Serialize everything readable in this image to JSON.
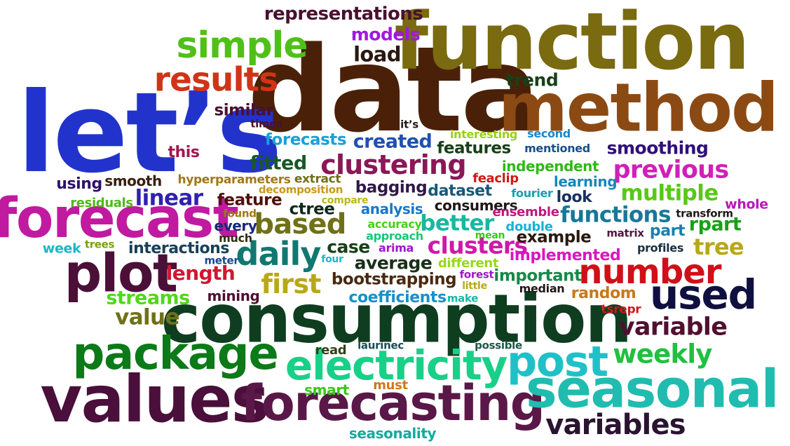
{
  "words": [
    {
      "text": "data",
      "color": "#4a2108"
    },
    {
      "text": "let’s",
      "color": "#2233cc"
    },
    {
      "text": "function",
      "color": "#7a6a10"
    },
    {
      "text": "method",
      "color": "#8b4a14"
    },
    {
      "text": "consumption",
      "color": "#0f3d20"
    },
    {
      "text": "values",
      "color": "#4a0f3a"
    },
    {
      "text": "forecast",
      "color": "#c01aa0"
    },
    {
      "text": "forecasting",
      "color": "#5a1848"
    },
    {
      "text": "seasonal",
      "color": "#20bcb0"
    },
    {
      "text": "package",
      "color": "#0c7a18"
    },
    {
      "text": "electricity",
      "color": "#18d088"
    },
    {
      "text": "plot",
      "color": "#4a1038"
    },
    {
      "text": "post",
      "color": "#20c0c8"
    },
    {
      "text": "simple",
      "color": "#50c018"
    },
    {
      "text": "results",
      "color": "#d03418"
    },
    {
      "text": "number",
      "color": "#d01018"
    },
    {
      "text": "used",
      "color": "#101040"
    },
    {
      "text": "variables",
      "color": "#2a1430"
    },
    {
      "text": "daily",
      "color": "#107870"
    },
    {
      "text": "clustering",
      "color": "#8a1858"
    },
    {
      "text": "previous",
      "color": "#d020b8"
    },
    {
      "text": "based",
      "color": "#707018"
    },
    {
      "text": "representations",
      "color": "#4a1030"
    },
    {
      "text": "load",
      "color": "#2a1810"
    },
    {
      "text": "models",
      "color": "#a018e0"
    },
    {
      "text": "first",
      "color": "#b8a818"
    },
    {
      "text": "variable",
      "color": "#501030"
    },
    {
      "text": "weekly",
      "color": "#20c040"
    },
    {
      "text": "clusters",
      "color": "#d018a8"
    },
    {
      "text": "linear",
      "color": "#3020b0"
    },
    {
      "text": "multiple",
      "color": "#58c818"
    },
    {
      "text": "functions",
      "color": "#187898"
    },
    {
      "text": "tree",
      "color": "#b8a818"
    },
    {
      "text": "fitted",
      "color": "#185828"
    },
    {
      "text": "smoothing",
      "color": "#301078"
    },
    {
      "text": "trend",
      "color": "#184018"
    },
    {
      "text": "similar",
      "color": "#4a1030"
    },
    {
      "text": "forecasts",
      "color": "#18a0d8"
    },
    {
      "text": "created",
      "color": "#2050b0"
    },
    {
      "text": "features",
      "color": "#184018"
    },
    {
      "text": "value",
      "color": "#707018"
    },
    {
      "text": "length",
      "color": "#d01830"
    },
    {
      "text": "streams",
      "color": "#50d818"
    },
    {
      "text": "bootstrapping",
      "color": "#4a2810"
    },
    {
      "text": "coefficients",
      "color": "#1890c8"
    },
    {
      "text": "average",
      "color": "#183018"
    },
    {
      "text": "case",
      "color": "#184018"
    },
    {
      "text": "better",
      "color": "#18b8a0"
    },
    {
      "text": "bagging",
      "color": "#301848"
    },
    {
      "text": "feature",
      "color": "#501008"
    },
    {
      "text": "interactions",
      "color": "#184058"
    },
    {
      "text": "independent",
      "color": "#30b818"
    },
    {
      "text": "learning",
      "color": "#1888b8"
    },
    {
      "text": "example",
      "color": "#2a1810"
    },
    {
      "text": "implemented",
      "color": "#d818c0"
    },
    {
      "text": "important",
      "color": "#188848"
    },
    {
      "text": "random",
      "color": "#c87818"
    },
    {
      "text": "rpart",
      "color": "#18a018"
    },
    {
      "text": "part",
      "color": "#1880b0"
    },
    {
      "text": "look",
      "color": "#183060"
    },
    {
      "text": "dataset",
      "color": "#185878"
    },
    {
      "text": "consumers",
      "color": "#201818"
    },
    {
      "text": "analysis",
      "color": "#1878c8"
    },
    {
      "text": "ctree",
      "color": "#102818"
    },
    {
      "text": "every",
      "color": "#182878"
    },
    {
      "text": "mining",
      "color": "#501030"
    },
    {
      "text": "this",
      "color": "#a01850"
    },
    {
      "text": "using",
      "color": "#30106a"
    },
    {
      "text": "smooth",
      "color": "#3a2010"
    },
    {
      "text": "residuals",
      "color": "#50b818"
    },
    {
      "text": "week",
      "color": "#18b8c8"
    },
    {
      "text": "trees",
      "color": "#78a018"
    },
    {
      "text": "much",
      "color": "#303010"
    },
    {
      "text": "meter",
      "color": "#184890"
    },
    {
      "text": "found",
      "color": "#a07818"
    },
    {
      "text": "whole",
      "color": "#b818b8"
    },
    {
      "text": "transform",
      "color": "#201818"
    },
    {
      "text": "matrix",
      "color": "#501840"
    },
    {
      "text": "profiles",
      "color": "#183040"
    },
    {
      "text": "median",
      "color": "#201818"
    },
    {
      "text": "tsrepr",
      "color": "#d01818"
    },
    {
      "text": "double",
      "color": "#18b0d8"
    },
    {
      "text": "mean",
      "color": "#38c818"
    },
    {
      "text": "ensemble",
      "color": "#c01880"
    },
    {
      "text": "fourier",
      "color": "#18a0b0"
    },
    {
      "text": "feaclip",
      "color": "#d01818"
    },
    {
      "text": "mentioned",
      "color": "#18508a"
    },
    {
      "text": "second",
      "color": "#1888c8"
    },
    {
      "text": "interesting",
      "color": "#98d018"
    },
    {
      "text": "it’s",
      "color": "#201818"
    },
    {
      "text": "times",
      "color": "#4a1030"
    },
    {
      "text": "hyperparameters",
      "color": "#a07818"
    },
    {
      "text": "decomposition",
      "color": "#c89818"
    },
    {
      "text": "extract",
      "color": "#707018"
    },
    {
      "text": "compare",
      "color": "#b8b818"
    },
    {
      "text": "accuracy",
      "color": "#48d018"
    },
    {
      "text": "approach",
      "color": "#18c878"
    },
    {
      "text": "arima",
      "color": "#a018c8"
    },
    {
      "text": "four",
      "color": "#18b8c8"
    },
    {
      "text": "different",
      "color": "#98d818"
    },
    {
      "text": "forest",
      "color": "#a018c8"
    },
    {
      "text": "little",
      "color": "#b8a818"
    },
    {
      "text": "make",
      "color": "#18b8a8"
    },
    {
      "text": "read",
      "color": "#304018"
    },
    {
      "text": "laurinec",
      "color": "#185058"
    },
    {
      "text": "possible",
      "color": "#185848"
    },
    {
      "text": "smart",
      "color": "#38c818"
    },
    {
      "text": "must",
      "color": "#d07818"
    },
    {
      "text": "seasonality",
      "color": "#18a8a0"
    }
  ]
}
